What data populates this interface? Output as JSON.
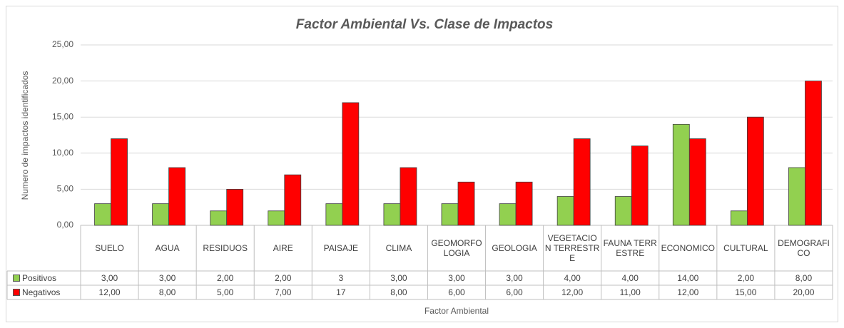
{
  "chart_data": {
    "type": "bar",
    "title": "Factor Ambiental Vs. Clase de Impactos",
    "y_label": "Numero de impactos identificados",
    "x_label": "Factor Ambiental",
    "categories": [
      "SUELO",
      "AGUA",
      "RESIDUOS",
      "AIRE",
      "PAISAJE",
      "CLIMA",
      "GEOMORFOLOGIA",
      "GEOLOGIA",
      "VEGETACION TERRESTRE",
      "FAUNA TERRESTRE",
      "ECONOMICO",
      "CULTURAL",
      "DEMOGRAFICO"
    ],
    "series": [
      {
        "name": "Positivos",
        "color": "#92d050",
        "values": [
          3,
          3,
          2,
          2,
          3,
          3,
          3,
          3,
          4,
          4,
          14,
          2,
          8
        ],
        "value_labels": [
          "3,00",
          "3,00",
          "2,00",
          "2,00",
          "3",
          "3,00",
          "3,00",
          "3,00",
          "4,00",
          "4,00",
          "14,00",
          "2,00",
          "8,00"
        ]
      },
      {
        "name": "Negativos",
        "color": "#ff0000",
        "values": [
          12,
          8,
          5,
          7,
          17,
          8,
          6,
          6,
          12,
          11,
          12,
          15,
          20
        ],
        "value_labels": [
          "12,00",
          "8,00",
          "5,00",
          "7,00",
          "17",
          "8,00",
          "6,00",
          "6,00",
          "12,00",
          "11,00",
          "12,00",
          "15,00",
          "20,00"
        ]
      }
    ],
    "ylim": [
      0,
      25
    ],
    "yticks": [
      {
        "value": 0,
        "label": "0,00"
      },
      {
        "value": 5,
        "label": "5,00"
      },
      {
        "value": 10,
        "label": "10,00"
      },
      {
        "value": 15,
        "label": "15,00"
      },
      {
        "value": 20,
        "label": "20,00"
      },
      {
        "value": 25,
        "label": "25,00"
      }
    ],
    "grid": true
  }
}
